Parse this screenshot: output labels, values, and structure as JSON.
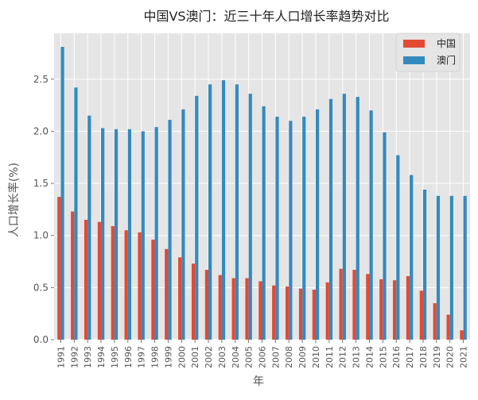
{
  "chart_data": {
    "type": "bar",
    "title": "中国VS澳门：近三十年人口增长率趋势对比",
    "xlabel": "年",
    "ylabel": "人口增长率(%)",
    "ylim": [
      0,
      2.94
    ],
    "yticks": [
      "0.0",
      "0.5",
      "1.0",
      "1.5",
      "2.0",
      "2.5"
    ],
    "grid": true,
    "legend_position": "top-right",
    "categories": [
      "1991",
      "1992",
      "1993",
      "1994",
      "1995",
      "1996",
      "1997",
      "1998",
      "1999",
      "2000",
      "2001",
      "2002",
      "2003",
      "2004",
      "2005",
      "2006",
      "2007",
      "2008",
      "2009",
      "2010",
      "2011",
      "2012",
      "2013",
      "2014",
      "2015",
      "2016",
      "2017",
      "2018",
      "2019",
      "2020",
      "2021"
    ],
    "series": [
      {
        "name": "中国",
        "color": "#E24A33",
        "values": [
          1.37,
          1.23,
          1.15,
          1.13,
          1.09,
          1.05,
          1.03,
          0.96,
          0.87,
          0.79,
          0.73,
          0.67,
          0.62,
          0.59,
          0.59,
          0.56,
          0.52,
          0.51,
          0.49,
          0.48,
          0.55,
          0.68,
          0.67,
          0.63,
          0.58,
          0.57,
          0.61,
          0.47,
          0.35,
          0.24,
          0.09
        ]
      },
      {
        "name": "澳门",
        "color": "#348ABD",
        "values": [
          2.81,
          2.42,
          2.15,
          2.03,
          2.02,
          2.02,
          2.0,
          2.04,
          2.11,
          2.21,
          2.34,
          2.45,
          2.49,
          2.45,
          2.36,
          2.24,
          2.14,
          2.1,
          2.14,
          2.21,
          2.31,
          2.36,
          2.33,
          2.2,
          1.99,
          1.77,
          1.58,
          1.44,
          1.38,
          1.38,
          1.38
        ]
      }
    ]
  }
}
